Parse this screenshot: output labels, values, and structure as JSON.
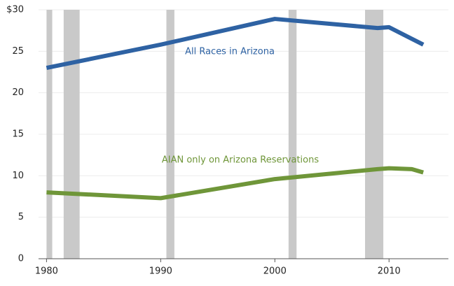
{
  "chart_data": {
    "type": "line",
    "x": [
      1980,
      1990,
      2000,
      2009,
      2010,
      2012,
      2013
    ],
    "series": [
      {
        "name": "All Races in Arizona",
        "color": "#2e62a3",
        "values": [
          23.0,
          25.8,
          28.9,
          27.8,
          27.9,
          26.5,
          25.8
        ]
      },
      {
        "name": "AIAN only on Arizona Reservations",
        "color": "#6f9639",
        "values": [
          8.0,
          7.3,
          9.6,
          10.8,
          10.9,
          10.8,
          10.4
        ]
      }
    ],
    "recessions": [
      [
        1980.0,
        1980.5
      ],
      [
        1981.5,
        1982.9
      ],
      [
        1990.5,
        1991.2
      ],
      [
        2001.2,
        2001.9
      ],
      [
        2007.9,
        2009.5
      ]
    ],
    "recession_color": "#c9c9c9",
    "xlim": [
      1979.3,
      2015.2
    ],
    "xticks": [
      1980,
      1990,
      2000,
      2010
    ],
    "ylim": [
      0,
      30
    ],
    "yticks": [
      0,
      5,
      10,
      15,
      20,
      25,
      {
        "value": 30,
        "label": "$30"
      }
    ],
    "grid": true
  }
}
